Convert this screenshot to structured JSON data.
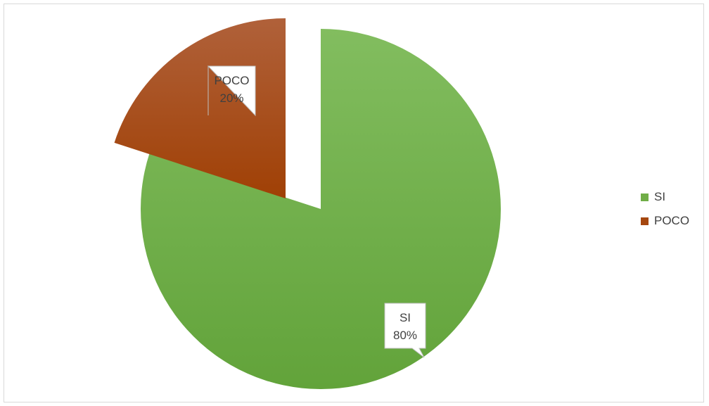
{
  "chart_data": {
    "type": "pie",
    "title": "",
    "slices": [
      {
        "label": "SI",
        "value": 80,
        "percent_label": "80%",
        "color": "#70ad47"
      },
      {
        "label": "POCO",
        "value": 20,
        "percent_label": "20%",
        "color": "#a5470f"
      }
    ],
    "legend_position": "right",
    "data_labels": "callouts"
  }
}
